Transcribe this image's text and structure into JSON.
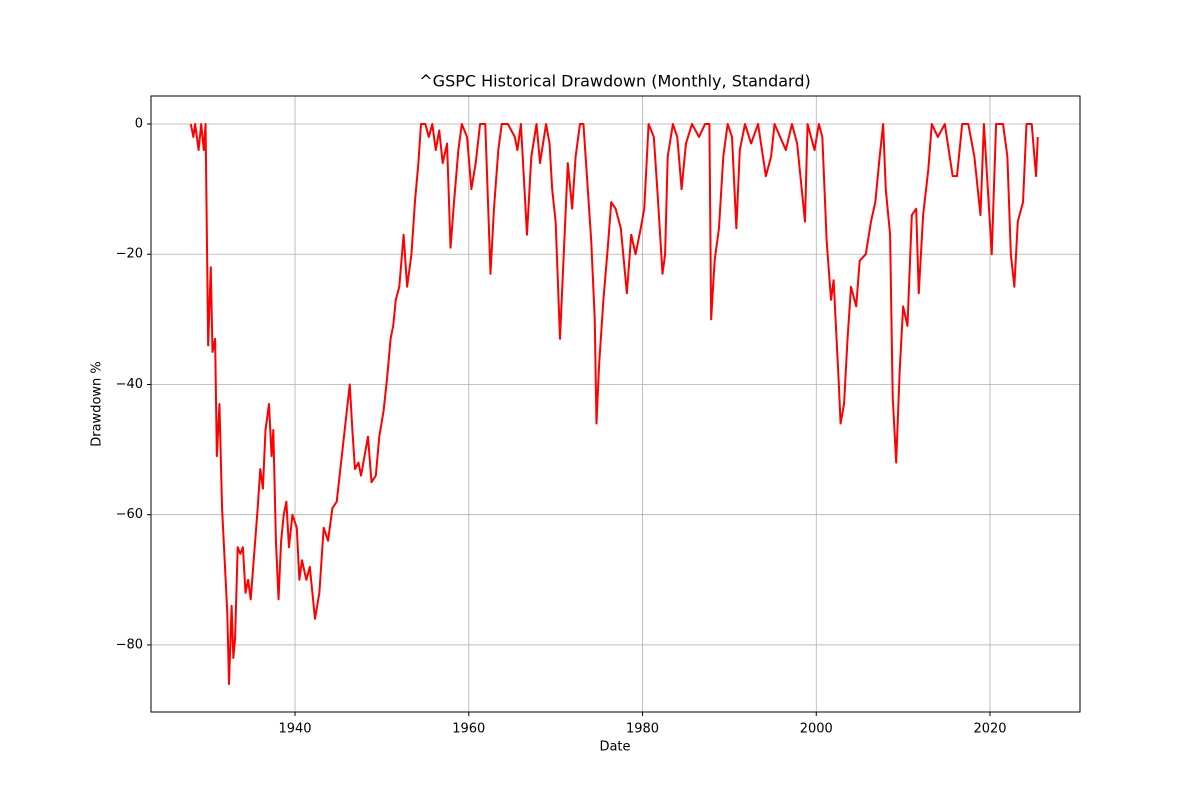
{
  "chart_data": {
    "type": "line",
    "title": "^GSPC Historical Drawdown (Monthly, Standard)",
    "x_label": "Date",
    "y_label": "Drawdown %",
    "color": "#ff0000",
    "grid": true,
    "xlim": [
      1923.42,
      2030.36
    ],
    "ylim": [
      -90.3,
      4.3
    ],
    "xticks": [
      1940,
      1960,
      1980,
      2000,
      2020
    ],
    "yticks": [
      {
        "value": -80,
        "label": "−80"
      },
      {
        "value": -60,
        "label": "−60"
      },
      {
        "value": -40,
        "label": "−40"
      },
      {
        "value": -20,
        "label": "−20"
      },
      0
    ],
    "x": [
      1928.0,
      1928.3,
      1928.5,
      1928.9,
      1929.2,
      1929.5,
      1929.7,
      1930.0,
      1930.3,
      1930.5,
      1930.8,
      1931.0,
      1931.3,
      1931.6,
      1931.9,
      1932.2,
      1932.4,
      1932.7,
      1932.9,
      1933.1,
      1933.4,
      1933.7,
      1934.0,
      1934.3,
      1934.6,
      1934.9,
      1935.3,
      1935.7,
      1936.0,
      1936.3,
      1936.6,
      1937.0,
      1937.3,
      1937.5,
      1937.8,
      1938.1,
      1938.4,
      1938.7,
      1939.0,
      1939.3,
      1939.7,
      1940.2,
      1940.5,
      1940.8,
      1941.3,
      1941.7,
      1942.3,
      1942.8,
      1943.3,
      1943.8,
      1944.3,
      1944.8,
      1945.3,
      1945.8,
      1946.3,
      1946.6,
      1946.9,
      1947.3,
      1947.6,
      1948.0,
      1948.4,
      1948.8,
      1949.3,
      1949.7,
      1950.2,
      1950.6,
      1951.0,
      1951.3,
      1951.6,
      1952.0,
      1952.5,
      1952.9,
      1953.4,
      1953.8,
      1954.2,
      1954.5,
      1955.0,
      1955.4,
      1955.8,
      1956.2,
      1956.6,
      1957.0,
      1957.5,
      1957.9,
      1958.3,
      1958.8,
      1959.2,
      1959.8,
      1960.3,
      1960.8,
      1961.3,
      1961.9,
      1962.5,
      1962.9,
      1963.4,
      1963.8,
      1964.5,
      1965.3,
      1965.6,
      1966.0,
      1966.7,
      1967.2,
      1967.8,
      1968.2,
      1968.9,
      1969.3,
      1969.6,
      1970.0,
      1970.5,
      1971.0,
      1971.4,
      1971.9,
      1972.3,
      1972.8,
      1973.2,
      1973.6,
      1974.1,
      1974.5,
      1974.7,
      1975.0,
      1975.5,
      1976.0,
      1976.4,
      1976.9,
      1977.5,
      1978.2,
      1978.7,
      1979.2,
      1979.8,
      1980.2,
      1980.7,
      1981.3,
      1981.7,
      1982.3,
      1982.6,
      1982.9,
      1983.5,
      1984.0,
      1984.5,
      1985.0,
      1985.7,
      1986.5,
      1987.2,
      1987.7,
      1987.9,
      1988.3,
      1988.8,
      1989.3,
      1989.8,
      1990.3,
      1990.8,
      1991.2,
      1991.8,
      1992.5,
      1993.3,
      1994.2,
      1994.8,
      1995.2,
      1996.5,
      1997.2,
      1997.8,
      1998.7,
      1999.0,
      1999.8,
      2000.3,
      2000.7,
      2001.2,
      2001.7,
      2002.0,
      2002.6,
      2002.8,
      2003.2,
      2003.6,
      2004.0,
      2004.6,
      2005.0,
      2005.7,
      2006.3,
      2006.8,
      2007.3,
      2007.7,
      2008.0,
      2008.5,
      2008.8,
      2009.2,
      2009.6,
      2010.0,
      2010.5,
      2011.0,
      2011.5,
      2011.8,
      2012.3,
      2012.9,
      2013.3,
      2014.0,
      2014.8,
      2015.7,
      2016.2,
      2016.8,
      2017.5,
      2018.2,
      2018.9,
      2019.3,
      2020.2,
      2020.7,
      2021.5,
      2022.0,
      2022.4,
      2022.8,
      2023.2,
      2023.8,
      2024.2,
      2024.8,
      2025.3,
      2025.5
    ],
    "values": [
      0,
      -2,
      0,
      -4,
      0,
      -4,
      0,
      -34,
      -22,
      -35,
      -33,
      -51,
      -43,
      -59,
      -67,
      -75,
      -86,
      -74,
      -82,
      -79,
      -65,
      -66,
      -65,
      -72,
      -70,
      -73,
      -66,
      -59,
      -53,
      -56,
      -47,
      -43,
      -51,
      -47,
      -64,
      -73,
      -64,
      -60,
      -58,
      -65,
      -60,
      -62,
      -70,
      -67,
      -70,
      -68,
      -76,
      -72,
      -62,
      -64,
      -59,
      -58,
      -52,
      -46,
      -40,
      -47,
      -53,
      -52,
      -54,
      -51,
      -48,
      -55,
      -54,
      -48,
      -44,
      -39,
      -33,
      -31,
      -27,
      -25,
      -17,
      -25,
      -20,
      -12,
      -6,
      0,
      0,
      -2,
      0,
      -4,
      -1,
      -6,
      -3,
      -19,
      -12,
      -4,
      0,
      -2,
      -10,
      -6,
      0,
      0,
      -23,
      -13,
      -4,
      0,
      0,
      -2,
      -4,
      0,
      -17,
      -5,
      0,
      -6,
      0,
      -3,
      -10,
      -15,
      -33,
      -18,
      -6,
      -13,
      -5,
      0,
      0,
      -8,
      -18,
      -30,
      -46,
      -37,
      -27,
      -19,
      -12,
      -13,
      -16,
      -26,
      -17,
      -20,
      -16,
      -13,
      0,
      -2,
      -10,
      -23,
      -20,
      -5,
      0,
      -2,
      -10,
      -3,
      0,
      -2,
      0,
      0,
      -30,
      -21,
      -16,
      -5,
      0,
      -2,
      -16,
      -4,
      0,
      -3,
      0,
      -8,
      -5,
      0,
      -4,
      0,
      -3,
      -15,
      0,
      -4,
      0,
      -2,
      -18,
      -27,
      -24,
      -40,
      -46,
      -43,
      -33,
      -25,
      -28,
      -21,
      -20,
      -15,
      -12,
      -5,
      0,
      -10,
      -17,
      -42,
      -52,
      -38,
      -28,
      -31,
      -14,
      -13,
      -26,
      -14,
      -7,
      0,
      -2,
      0,
      -8,
      -8,
      0,
      0,
      -5,
      -14,
      0,
      -20,
      0,
      0,
      -5,
      -20,
      -25,
      -15,
      -12,
      0,
      0,
      -8,
      -2
    ]
  }
}
